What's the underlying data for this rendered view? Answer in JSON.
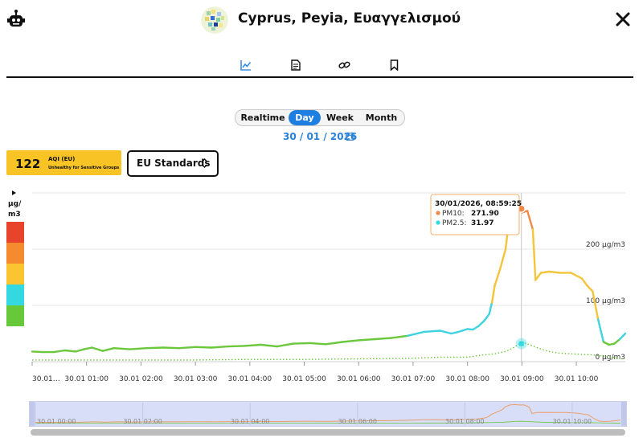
{
  "header": {
    "title": "Cyprus, Peyia, Ευαγγελισμού",
    "icons": [
      "robot-icon",
      "station-logo",
      "close-icon"
    ]
  },
  "tabs": [
    {
      "icon": "chart-icon",
      "active": true
    },
    {
      "icon": "document-icon",
      "active": false
    },
    {
      "icon": "link-icon",
      "active": false
    },
    {
      "icon": "bookmark-icon",
      "active": false
    }
  ],
  "range": {
    "options": [
      "Realtime",
      "Day",
      "Week",
      "Month"
    ],
    "selected": "Day"
  },
  "date": "30 / 01 / 2026",
  "aqi": {
    "value": "122",
    "label": "AQI (EU)",
    "category": "Unhealthy for Sensitive Groups",
    "color": "#f7c325"
  },
  "standard": {
    "label": "EU Standards"
  },
  "scale_legend": {
    "unit": "μg/ m3",
    "colors": [
      "#e8442b",
      "#f58a2e",
      "#fbc431",
      "#34d8e0",
      "#67c83a"
    ]
  },
  "tooltip": {
    "time": "30/01/2026, 08:59:25",
    "pm10_label": "PM10:",
    "pm10_value": "271.90",
    "pm25_label": "PM2.5:",
    "pm25_value": "31.97"
  },
  "chart_data": {
    "type": "line",
    "xlabel": "",
    "ylabel": "",
    "y_tick_labels": [
      "0 μg/m3",
      "100 μg/m3",
      "200 μg/m3"
    ],
    "ylim": [
      0,
      300
    ],
    "x_tick_labels": [
      "30.01…",
      "30.01 01:00",
      "30.01 02:00",
      "30.01 03:00",
      "30.01 04:00",
      "30.01 05:00",
      "30.01 06:00",
      "30.01 07:00",
      "30.01 08:00",
      "30.01 09:00",
      "30.01 10:00"
    ],
    "xlim_hours": [
      0.0,
      10.9
    ],
    "grid": true,
    "series": [
      {
        "name": "PM10",
        "style": "solid",
        "x": [
          0.0,
          0.2,
          0.4,
          0.6,
          0.8,
          0.95,
          1.1,
          1.3,
          1.5,
          1.8,
          2.1,
          2.4,
          2.7,
          3.0,
          3.3,
          3.6,
          3.9,
          4.2,
          4.5,
          4.8,
          5.1,
          5.4,
          5.7,
          6.0,
          6.3,
          6.6,
          6.9,
          7.2,
          7.5,
          7.7,
          7.8,
          7.9,
          8.0,
          8.1,
          8.2,
          8.3,
          8.35,
          8.4,
          8.45,
          8.5,
          8.6,
          8.7,
          8.75,
          8.85,
          8.95,
          9.0,
          9.1,
          9.2,
          9.25,
          9.35,
          9.5,
          9.7,
          9.9,
          10.1,
          10.2,
          10.3,
          10.4,
          10.5,
          10.6,
          10.7,
          10.8,
          10.9
        ],
        "values": [
          18,
          17,
          17,
          20,
          18,
          22,
          25,
          19,
          24,
          22,
          24,
          25,
          24,
          26,
          25,
          27,
          28,
          30,
          27,
          32,
          33,
          31,
          35,
          38,
          40,
          42,
          46,
          53,
          55,
          50,
          52,
          55,
          58,
          57,
          63,
          72,
          78,
          85,
          105,
          135,
          165,
          200,
          240,
          268,
          272,
          265,
          268,
          235,
          145,
          158,
          160,
          158,
          158,
          148,
          135,
          125,
          75,
          35,
          30,
          32,
          40,
          50
        ]
      },
      {
        "name": "PM2.5",
        "style": "dotted",
        "x": [
          0.0,
          1.0,
          2.0,
          3.0,
          4.0,
          5.0,
          6.0,
          7.0,
          7.5,
          8.0,
          8.3,
          8.5,
          8.7,
          8.85,
          8.95,
          9.05,
          9.15,
          9.3,
          9.5,
          9.7,
          9.9,
          10.1,
          10.3,
          10.5,
          10.7,
          10.9
        ],
        "values": [
          3,
          3,
          3,
          3,
          4,
          4,
          5,
          6,
          8,
          8,
          12,
          14,
          18,
          25,
          32,
          33,
          30,
          24,
          18,
          15,
          14,
          13,
          12,
          10,
          7,
          5
        ]
      }
    ],
    "highlight_x": 8.99
  },
  "navigator": {
    "tick_labels": [
      "30.01 00:00",
      "30.01 02:00",
      "30.01 04:00",
      "30.01 06:00",
      "30.01 08:00",
      "30.01 10:00"
    ]
  }
}
